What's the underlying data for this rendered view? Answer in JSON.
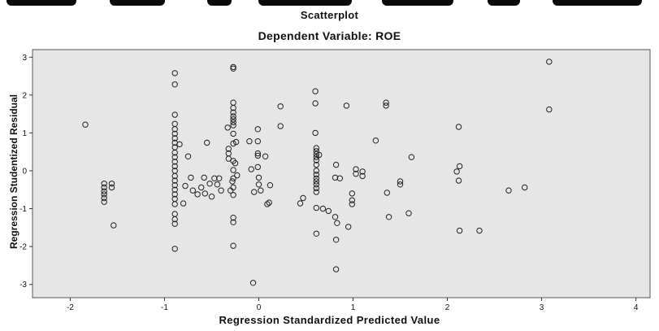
{
  "chart_data": {
    "type": "scatter",
    "title": "Scatterplot",
    "subtitle": "Dependent Variable: ROE",
    "xlabel": "Regression Standardized Predicted Value",
    "ylabel": "Regression Studentized Residual",
    "xlim": [
      -2.4,
      4.15
    ],
    "ylim": [
      -3.35,
      3.2
    ],
    "xticks": [
      "-2",
      "-1",
      "0",
      "1",
      "2",
      "3",
      "4"
    ],
    "yticks": [
      "3",
      "2",
      "1",
      "0",
      "-1",
      "-2",
      "-3"
    ],
    "grid": false,
    "background": "#e6e6e6",
    "marker": "hollow circle",
    "points": [
      [
        -1.84,
        1.22
      ],
      [
        -1.64,
        -0.34
      ],
      [
        -1.64,
        -0.44
      ],
      [
        -1.64,
        -0.54
      ],
      [
        -1.64,
        -0.62
      ],
      [
        -1.64,
        -0.72
      ],
      [
        -1.64,
        -0.82
      ],
      [
        -1.56,
        -0.34
      ],
      [
        -1.56,
        -0.44
      ],
      [
        -1.54,
        -1.44
      ],
      [
        -0.89,
        2.58
      ],
      [
        -0.89,
        2.28
      ],
      [
        -0.89,
        1.48
      ],
      [
        -0.89,
        1.24
      ],
      [
        -0.89,
        1.1
      ],
      [
        -0.89,
        0.98
      ],
      [
        -0.89,
        0.86
      ],
      [
        -0.89,
        0.74
      ],
      [
        -0.89,
        0.62
      ],
      [
        -0.89,
        0.48
      ],
      [
        -0.89,
        0.36
      ],
      [
        -0.89,
        0.24
      ],
      [
        -0.89,
        0.12
      ],
      [
        -0.89,
        0.0
      ],
      [
        -0.89,
        -0.14
      ],
      [
        -0.89,
        -0.26
      ],
      [
        -0.89,
        -0.38
      ],
      [
        -0.89,
        -0.5
      ],
      [
        -0.89,
        -0.62
      ],
      [
        -0.89,
        -0.74
      ],
      [
        -0.89,
        -0.88
      ],
      [
        -0.89,
        -1.14
      ],
      [
        -0.89,
        -1.28
      ],
      [
        -0.89,
        -1.4
      ],
      [
        -0.89,
        -2.06
      ],
      [
        -0.84,
        0.7
      ],
      [
        -0.8,
        -0.86
      ],
      [
        -0.78,
        -0.4
      ],
      [
        -0.75,
        0.38
      ],
      [
        -0.72,
        -0.18
      ],
      [
        -0.7,
        -0.52
      ],
      [
        -0.65,
        -0.62
      ],
      [
        -0.61,
        -0.44
      ],
      [
        -0.58,
        -0.18
      ],
      [
        -0.57,
        -0.6
      ],
      [
        -0.55,
        0.74
      ],
      [
        -0.52,
        -0.34
      ],
      [
        -0.5,
        -0.68
      ],
      [
        -0.47,
        -0.2
      ],
      [
        -0.44,
        -0.36
      ],
      [
        -0.42,
        -0.2
      ],
      [
        -0.4,
        -0.52
      ],
      [
        -0.33,
        1.14
      ],
      [
        -0.32,
        0.58
      ],
      [
        -0.32,
        0.46
      ],
      [
        -0.32,
        0.32
      ],
      [
        -0.3,
        -0.52
      ],
      [
        -0.28,
        -0.28
      ],
      [
        -0.25,
        0.2
      ],
      [
        -0.24,
        0.76
      ],
      [
        -0.23,
        -0.12
      ],
      [
        -0.27,
        2.74
      ],
      [
        -0.27,
        2.7
      ],
      [
        -0.27,
        1.8
      ],
      [
        -0.27,
        1.66
      ],
      [
        -0.27,
        1.54
      ],
      [
        -0.27,
        1.44
      ],
      [
        -0.27,
        1.36
      ],
      [
        -0.27,
        1.28
      ],
      [
        -0.27,
        1.2
      ],
      [
        -0.27,
        0.98
      ],
      [
        -0.27,
        0.72
      ],
      [
        -0.27,
        0.26
      ],
      [
        -0.27,
        0.02
      ],
      [
        -0.27,
        -0.2
      ],
      [
        -0.27,
        -0.44
      ],
      [
        -0.27,
        -0.64
      ],
      [
        -0.27,
        -1.24
      ],
      [
        -0.27,
        -1.36
      ],
      [
        -0.27,
        -1.98
      ],
      [
        -0.1,
        0.78
      ],
      [
        -0.08,
        0.04
      ],
      [
        -0.05,
        -0.56
      ],
      [
        -0.06,
        -2.96
      ],
      [
        -0.01,
        1.1
      ],
      [
        -0.01,
        0.78
      ],
      [
        -0.01,
        0.46
      ],
      [
        -0.01,
        0.4
      ],
      [
        -0.01,
        0.1
      ],
      [
        0.0,
        -0.18
      ],
      [
        0.0,
        -0.36
      ],
      [
        0.02,
        -0.52
      ],
      [
        0.07,
        0.38
      ],
      [
        0.09,
        -0.88
      ],
      [
        0.11,
        -0.84
      ],
      [
        0.12,
        -0.38
      ],
      [
        0.23,
        1.7
      ],
      [
        0.23,
        1.18
      ],
      [
        0.44,
        -0.86
      ],
      [
        0.47,
        -0.72
      ],
      [
        0.6,
        2.1
      ],
      [
        0.6,
        1.78
      ],
      [
        0.6,
        1.0
      ],
      [
        0.61,
        0.6
      ],
      [
        0.61,
        0.52
      ],
      [
        0.61,
        0.44
      ],
      [
        0.61,
        0.36
      ],
      [
        0.61,
        0.28
      ],
      [
        0.61,
        0.16
      ],
      [
        0.61,
        0.0
      ],
      [
        0.61,
        -0.1
      ],
      [
        0.61,
        -0.2
      ],
      [
        0.61,
        -0.28
      ],
      [
        0.61,
        -0.36
      ],
      [
        0.61,
        -0.46
      ],
      [
        0.61,
        -0.56
      ],
      [
        0.61,
        -0.98
      ],
      [
        0.61,
        -1.66
      ],
      [
        0.64,
        0.42
      ],
      [
        0.68,
        -1.0
      ],
      [
        0.74,
        -1.06
      ],
      [
        0.81,
        -1.22
      ],
      [
        0.81,
        -0.18
      ],
      [
        0.82,
        0.16
      ],
      [
        0.83,
        -1.38
      ],
      [
        0.82,
        -1.82
      ],
      [
        0.82,
        -2.6
      ],
      [
        0.86,
        -0.2
      ],
      [
        0.93,
        1.72
      ],
      [
        0.95,
        -1.48
      ],
      [
        0.99,
        -0.6
      ],
      [
        0.99,
        -0.78
      ],
      [
        0.99,
        -0.88
      ],
      [
        1.03,
        0.04
      ],
      [
        1.03,
        -0.08
      ],
      [
        1.1,
        -0.14
      ],
      [
        1.1,
        -0.02
      ],
      [
        1.24,
        0.8
      ],
      [
        1.35,
        1.8
      ],
      [
        1.35,
        1.72
      ],
      [
        1.36,
        -0.58
      ],
      [
        1.38,
        -1.22
      ],
      [
        1.5,
        -0.36
      ],
      [
        1.5,
        -0.28
      ],
      [
        1.59,
        -1.12
      ],
      [
        1.62,
        0.36
      ],
      [
        2.1,
        -0.02
      ],
      [
        2.12,
        -0.26
      ],
      [
        2.13,
        0.12
      ],
      [
        2.12,
        1.16
      ],
      [
        2.13,
        -1.58
      ],
      [
        2.34,
        -1.58
      ],
      [
        2.65,
        -0.52
      ],
      [
        2.82,
        -0.44
      ],
      [
        3.08,
        2.88
      ],
      [
        3.08,
        1.62
      ]
    ]
  }
}
